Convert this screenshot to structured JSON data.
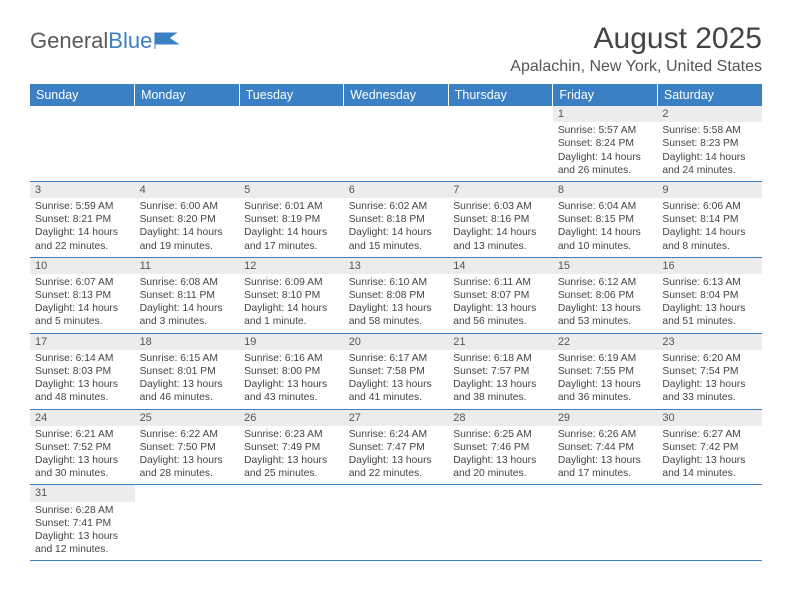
{
  "brand": {
    "part1": "General",
    "part2": "Blue"
  },
  "title": "August 2025",
  "location": "Apalachin, New York, United States",
  "colors": {
    "header_bg": "#3b7fc4",
    "header_text": "#ffffff",
    "daynum_bg": "#ececec",
    "border": "#3b7fc4",
    "text": "#444444",
    "background": "#ffffff"
  },
  "weekdays": [
    "Sunday",
    "Monday",
    "Tuesday",
    "Wednesday",
    "Thursday",
    "Friday",
    "Saturday"
  ],
  "weeks": [
    [
      {
        "n": "",
        "lines": [
          "",
          "",
          "",
          ""
        ]
      },
      {
        "n": "",
        "lines": [
          "",
          "",
          "",
          ""
        ]
      },
      {
        "n": "",
        "lines": [
          "",
          "",
          "",
          ""
        ]
      },
      {
        "n": "",
        "lines": [
          "",
          "",
          "",
          ""
        ]
      },
      {
        "n": "",
        "lines": [
          "",
          "",
          "",
          ""
        ]
      },
      {
        "n": "1",
        "lines": [
          "Sunrise: 5:57 AM",
          "Sunset: 8:24 PM",
          "Daylight: 14 hours",
          "and 26 minutes."
        ]
      },
      {
        "n": "2",
        "lines": [
          "Sunrise: 5:58 AM",
          "Sunset: 8:23 PM",
          "Daylight: 14 hours",
          "and 24 minutes."
        ]
      }
    ],
    [
      {
        "n": "3",
        "lines": [
          "Sunrise: 5:59 AM",
          "Sunset: 8:21 PM",
          "Daylight: 14 hours",
          "and 22 minutes."
        ]
      },
      {
        "n": "4",
        "lines": [
          "Sunrise: 6:00 AM",
          "Sunset: 8:20 PM",
          "Daylight: 14 hours",
          "and 19 minutes."
        ]
      },
      {
        "n": "5",
        "lines": [
          "Sunrise: 6:01 AM",
          "Sunset: 8:19 PM",
          "Daylight: 14 hours",
          "and 17 minutes."
        ]
      },
      {
        "n": "6",
        "lines": [
          "Sunrise: 6:02 AM",
          "Sunset: 8:18 PM",
          "Daylight: 14 hours",
          "and 15 minutes."
        ]
      },
      {
        "n": "7",
        "lines": [
          "Sunrise: 6:03 AM",
          "Sunset: 8:16 PM",
          "Daylight: 14 hours",
          "and 13 minutes."
        ]
      },
      {
        "n": "8",
        "lines": [
          "Sunrise: 6:04 AM",
          "Sunset: 8:15 PM",
          "Daylight: 14 hours",
          "and 10 minutes."
        ]
      },
      {
        "n": "9",
        "lines": [
          "Sunrise: 6:06 AM",
          "Sunset: 8:14 PM",
          "Daylight: 14 hours",
          "and 8 minutes."
        ]
      }
    ],
    [
      {
        "n": "10",
        "lines": [
          "Sunrise: 6:07 AM",
          "Sunset: 8:13 PM",
          "Daylight: 14 hours",
          "and 5 minutes."
        ]
      },
      {
        "n": "11",
        "lines": [
          "Sunrise: 6:08 AM",
          "Sunset: 8:11 PM",
          "Daylight: 14 hours",
          "and 3 minutes."
        ]
      },
      {
        "n": "12",
        "lines": [
          "Sunrise: 6:09 AM",
          "Sunset: 8:10 PM",
          "Daylight: 14 hours",
          "and 1 minute."
        ]
      },
      {
        "n": "13",
        "lines": [
          "Sunrise: 6:10 AM",
          "Sunset: 8:08 PM",
          "Daylight: 13 hours",
          "and 58 minutes."
        ]
      },
      {
        "n": "14",
        "lines": [
          "Sunrise: 6:11 AM",
          "Sunset: 8:07 PM",
          "Daylight: 13 hours",
          "and 56 minutes."
        ]
      },
      {
        "n": "15",
        "lines": [
          "Sunrise: 6:12 AM",
          "Sunset: 8:06 PM",
          "Daylight: 13 hours",
          "and 53 minutes."
        ]
      },
      {
        "n": "16",
        "lines": [
          "Sunrise: 6:13 AM",
          "Sunset: 8:04 PM",
          "Daylight: 13 hours",
          "and 51 minutes."
        ]
      }
    ],
    [
      {
        "n": "17",
        "lines": [
          "Sunrise: 6:14 AM",
          "Sunset: 8:03 PM",
          "Daylight: 13 hours",
          "and 48 minutes."
        ]
      },
      {
        "n": "18",
        "lines": [
          "Sunrise: 6:15 AM",
          "Sunset: 8:01 PM",
          "Daylight: 13 hours",
          "and 46 minutes."
        ]
      },
      {
        "n": "19",
        "lines": [
          "Sunrise: 6:16 AM",
          "Sunset: 8:00 PM",
          "Daylight: 13 hours",
          "and 43 minutes."
        ]
      },
      {
        "n": "20",
        "lines": [
          "Sunrise: 6:17 AM",
          "Sunset: 7:58 PM",
          "Daylight: 13 hours",
          "and 41 minutes."
        ]
      },
      {
        "n": "21",
        "lines": [
          "Sunrise: 6:18 AM",
          "Sunset: 7:57 PM",
          "Daylight: 13 hours",
          "and 38 minutes."
        ]
      },
      {
        "n": "22",
        "lines": [
          "Sunrise: 6:19 AM",
          "Sunset: 7:55 PM",
          "Daylight: 13 hours",
          "and 36 minutes."
        ]
      },
      {
        "n": "23",
        "lines": [
          "Sunrise: 6:20 AM",
          "Sunset: 7:54 PM",
          "Daylight: 13 hours",
          "and 33 minutes."
        ]
      }
    ],
    [
      {
        "n": "24",
        "lines": [
          "Sunrise: 6:21 AM",
          "Sunset: 7:52 PM",
          "Daylight: 13 hours",
          "and 30 minutes."
        ]
      },
      {
        "n": "25",
        "lines": [
          "Sunrise: 6:22 AM",
          "Sunset: 7:50 PM",
          "Daylight: 13 hours",
          "and 28 minutes."
        ]
      },
      {
        "n": "26",
        "lines": [
          "Sunrise: 6:23 AM",
          "Sunset: 7:49 PM",
          "Daylight: 13 hours",
          "and 25 minutes."
        ]
      },
      {
        "n": "27",
        "lines": [
          "Sunrise: 6:24 AM",
          "Sunset: 7:47 PM",
          "Daylight: 13 hours",
          "and 22 minutes."
        ]
      },
      {
        "n": "28",
        "lines": [
          "Sunrise: 6:25 AM",
          "Sunset: 7:46 PM",
          "Daylight: 13 hours",
          "and 20 minutes."
        ]
      },
      {
        "n": "29",
        "lines": [
          "Sunrise: 6:26 AM",
          "Sunset: 7:44 PM",
          "Daylight: 13 hours",
          "and 17 minutes."
        ]
      },
      {
        "n": "30",
        "lines": [
          "Sunrise: 6:27 AM",
          "Sunset: 7:42 PM",
          "Daylight: 13 hours",
          "and 14 minutes."
        ]
      }
    ],
    [
      {
        "n": "31",
        "lines": [
          "Sunrise: 6:28 AM",
          "Sunset: 7:41 PM",
          "Daylight: 13 hours",
          "and 12 minutes."
        ]
      },
      {
        "n": "",
        "lines": [
          "",
          "",
          "",
          ""
        ]
      },
      {
        "n": "",
        "lines": [
          "",
          "",
          "",
          ""
        ]
      },
      {
        "n": "",
        "lines": [
          "",
          "",
          "",
          ""
        ]
      },
      {
        "n": "",
        "lines": [
          "",
          "",
          "",
          ""
        ]
      },
      {
        "n": "",
        "lines": [
          "",
          "",
          "",
          ""
        ]
      },
      {
        "n": "",
        "lines": [
          "",
          "",
          "",
          ""
        ]
      }
    ]
  ]
}
